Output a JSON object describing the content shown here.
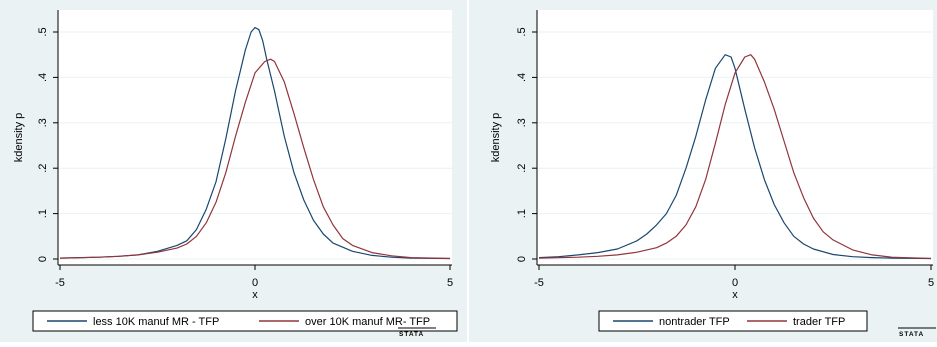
{
  "charts": {
    "left": {
      "logo": "STATA"
    },
    "right": {
      "logo": "STATA"
    }
  },
  "chart_data": [
    {
      "type": "line",
      "xlabel": "x",
      "ylabel": "kdensity p",
      "xlim": [
        -5,
        5
      ],
      "ylim": [
        0,
        0.5
      ],
      "xticks": [
        -5,
        0,
        5
      ],
      "xtick_labels": [
        "-5",
        "0",
        "5"
      ],
      "yticks": [
        0,
        0.1,
        0.2,
        0.3,
        0.4,
        0.5
      ],
      "ytick_labels": [
        "0",
        ".1",
        ".2",
        ".3",
        ".4",
        ".5"
      ],
      "grid": true,
      "legend_position": "bottom",
      "series": [
        {
          "name": "less 10K manuf MR - TFP",
          "color": "#1a476f",
          "x": [
            -5,
            -4,
            -3.5,
            -3,
            -2.5,
            -2,
            -1.75,
            -1.5,
            -1.25,
            -1,
            -0.75,
            -0.5,
            -0.25,
            -0.1,
            0,
            0.1,
            0.2,
            0.3,
            0.5,
            0.75,
            1,
            1.25,
            1.5,
            1.75,
            2,
            2.5,
            3,
            3.5,
            4,
            5
          ],
          "y": [
            0.002,
            0.004,
            0.006,
            0.009,
            0.017,
            0.03,
            0.04,
            0.065,
            0.11,
            0.17,
            0.265,
            0.37,
            0.46,
            0.5,
            0.51,
            0.505,
            0.48,
            0.44,
            0.37,
            0.27,
            0.19,
            0.13,
            0.085,
            0.055,
            0.035,
            0.017,
            0.008,
            0.004,
            0.002,
            0.001
          ]
        },
        {
          "name": "over 10K manuf MR- TFP",
          "color": "#90353b",
          "x": [
            -5,
            -4,
            -3.5,
            -3,
            -2.5,
            -2,
            -1.75,
            -1.5,
            -1.25,
            -1,
            -0.75,
            -0.5,
            -0.25,
            0,
            0.25,
            0.4,
            0.5,
            0.75,
            1,
            1.25,
            1.5,
            1.75,
            2,
            2.25,
            2.5,
            3,
            3.5,
            4,
            5
          ],
          "y": [
            0.002,
            0.004,
            0.006,
            0.009,
            0.015,
            0.024,
            0.033,
            0.05,
            0.08,
            0.125,
            0.19,
            0.27,
            0.345,
            0.41,
            0.435,
            0.44,
            0.435,
            0.39,
            0.32,
            0.245,
            0.175,
            0.115,
            0.075,
            0.045,
            0.03,
            0.014,
            0.007,
            0.003,
            0.001
          ]
        }
      ]
    },
    {
      "type": "line",
      "xlabel": "x",
      "ylabel": "kdensity p",
      "xlim": [
        -5,
        5
      ],
      "ylim": [
        0,
        0.5
      ],
      "xticks": [
        -5,
        0,
        5
      ],
      "xtick_labels": [
        "-5",
        "0",
        "5"
      ],
      "yticks": [
        0,
        0.1,
        0.2,
        0.3,
        0.4,
        0.5
      ],
      "ytick_labels": [
        "0",
        ".1",
        ".2",
        ".3",
        ".4",
        ".5"
      ],
      "grid": true,
      "legend_position": "bottom",
      "series": [
        {
          "name": "nontrader TFP",
          "color": "#1a476f",
          "x": [
            -5,
            -4.5,
            -4,
            -3.5,
            -3,
            -2.5,
            -2.25,
            -2,
            -1.75,
            -1.5,
            -1.25,
            -1,
            -0.75,
            -0.5,
            -0.25,
            -0.1,
            0,
            0.25,
            0.5,
            0.75,
            1,
            1.25,
            1.5,
            1.75,
            2,
            2.5,
            3,
            3.5,
            4,
            5
          ],
          "y": [
            0.003,
            0.005,
            0.009,
            0.014,
            0.022,
            0.04,
            0.055,
            0.075,
            0.1,
            0.14,
            0.2,
            0.27,
            0.35,
            0.42,
            0.45,
            0.445,
            0.42,
            0.33,
            0.245,
            0.175,
            0.12,
            0.08,
            0.05,
            0.033,
            0.022,
            0.01,
            0.005,
            0.003,
            0.002,
            0.001
          ]
        },
        {
          "name": "trader TFP",
          "color": "#90353b",
          "x": [
            -5,
            -4.5,
            -4,
            -3.5,
            -3,
            -2.5,
            -2,
            -1.75,
            -1.5,
            -1.25,
            -1,
            -0.75,
            -0.5,
            -0.25,
            0,
            0.25,
            0.4,
            0.5,
            0.75,
            1,
            1.25,
            1.5,
            1.75,
            2,
            2.25,
            2.5,
            3,
            3.5,
            4,
            5
          ],
          "y": [
            0.002,
            0.003,
            0.004,
            0.006,
            0.009,
            0.015,
            0.025,
            0.035,
            0.05,
            0.075,
            0.115,
            0.175,
            0.255,
            0.34,
            0.41,
            0.445,
            0.45,
            0.44,
            0.39,
            0.33,
            0.26,
            0.19,
            0.135,
            0.09,
            0.06,
            0.042,
            0.02,
            0.009,
            0.004,
            0.001
          ]
        }
      ]
    }
  ]
}
